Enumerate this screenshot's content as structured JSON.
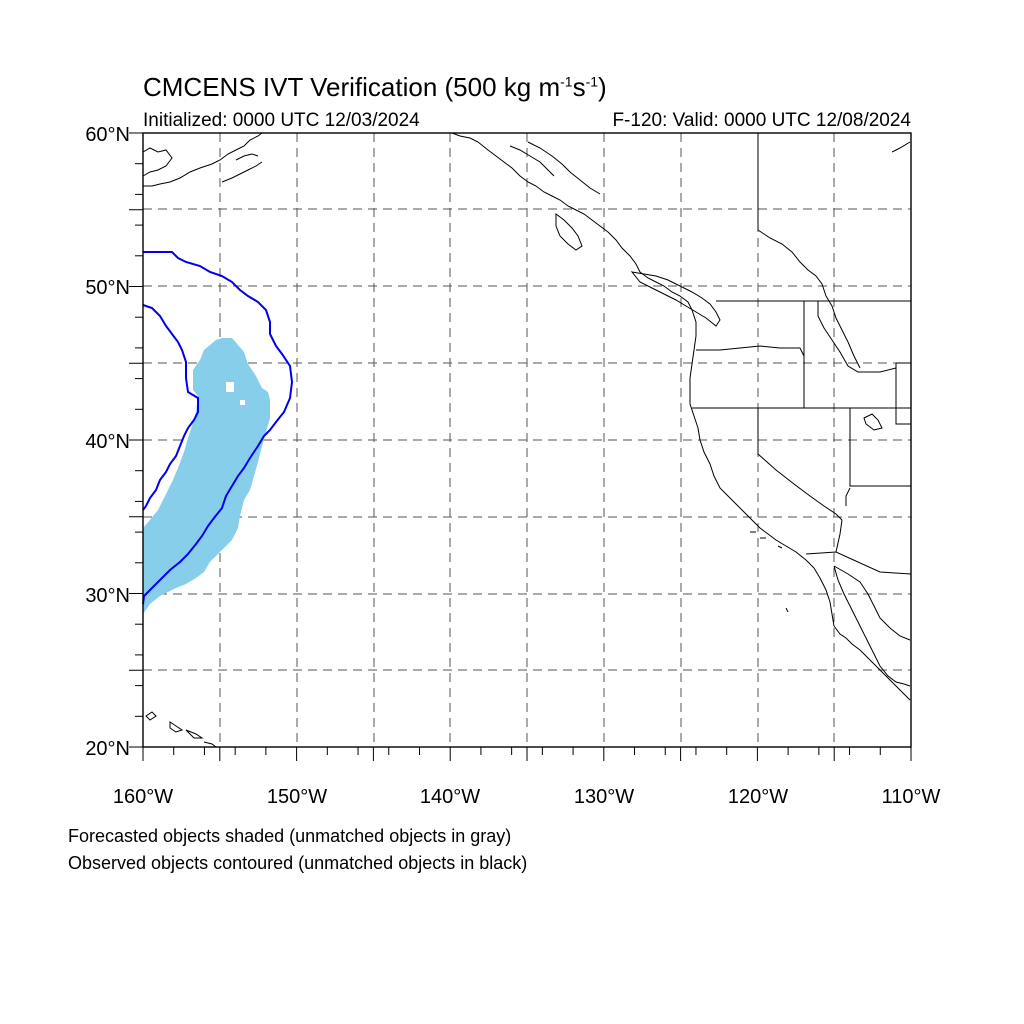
{
  "title": {
    "prefix": "CMCENS IVT Verification (500 kg m",
    "sup1": "-1",
    "mid": "s",
    "sup2": "-1",
    "suffix": ")"
  },
  "initialized": "Initialized: 0000 UTC 12/03/2024",
  "valid": "F-120: Valid: 0000 UTC 12/08/2024",
  "lat_labels": [
    "60°N",
    "50°N",
    "40°N",
    "30°N",
    "20°N"
  ],
  "lon_labels": [
    "160°W",
    "150°W",
    "140°W",
    "130°W",
    "120°W",
    "110°W"
  ],
  "notes": [
    "Forecasted objects shaded (unmatched objects in gray)",
    "Observed objects contoured (unmatched objects in black)"
  ],
  "colors": {
    "forecast_shade": "#87ceeb",
    "observed_contour": "#0000ee",
    "coast": "#000000",
    "grid": "#555555"
  },
  "map_extent": {
    "lon_min": -160,
    "lon_max": -110,
    "lat_min": 20,
    "lat_max": 60
  }
}
